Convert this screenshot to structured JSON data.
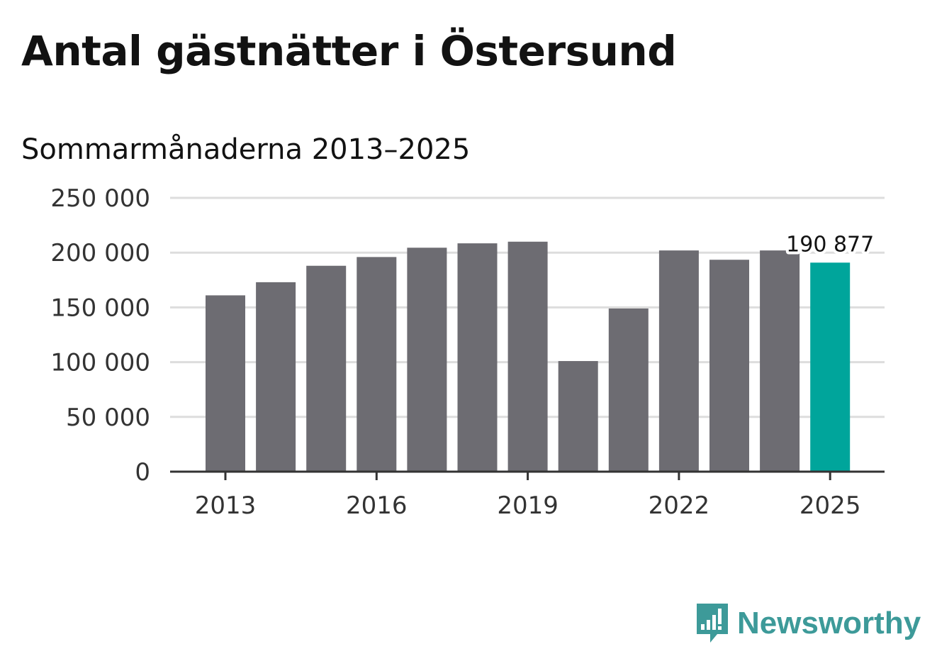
{
  "title": "Antal gästnätter i Östersund",
  "subtitle": "Sommarmånaderna 2013–2025",
  "brand": {
    "name": "Newsworthy",
    "color": "#3d9a99"
  },
  "colors": {
    "bar": "#6d6c72",
    "highlight": "#00a59b",
    "grid": "#dddddd",
    "axis": "#333333"
  },
  "chart_data": {
    "type": "bar",
    "categories": [
      "2013",
      "2014",
      "2015",
      "2016",
      "2017",
      "2018",
      "2019",
      "2020",
      "2021",
      "2022",
      "2023",
      "2024",
      "2025"
    ],
    "values": [
      161000,
      173000,
      188000,
      196000,
      204500,
      208500,
      210000,
      101000,
      149000,
      202000,
      193500,
      202000,
      190877
    ],
    "highlight_index": 12,
    "x_tick_labels": [
      "2013",
      "2016",
      "2019",
      "2022",
      "2025"
    ],
    "y_ticks": [
      0,
      50000,
      100000,
      150000,
      200000,
      250000
    ],
    "y_tick_labels": [
      "0",
      "50 000",
      "100 000",
      "150 000",
      "200 000",
      "250 000"
    ],
    "ylim": [
      0,
      250000
    ],
    "grid": true,
    "annotation": {
      "index": 12,
      "text": "190 877"
    },
    "xlabel": "",
    "ylabel": ""
  }
}
